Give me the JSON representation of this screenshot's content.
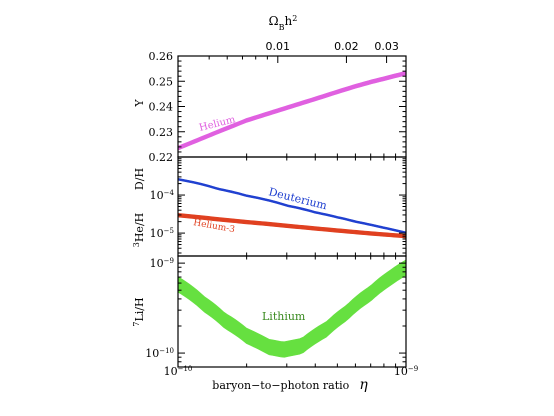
{
  "chart_data": {
    "type": "line",
    "x_axis": {
      "label": "baryon−to−photon ratio",
      "symbol": "η",
      "scale": "log",
      "range": [
        1e-10,
        1e-09
      ],
      "tick_labels": [
        {
          "value": 1e-10,
          "base": "10",
          "exp": "−10"
        },
        {
          "value": 1e-09,
          "base": "10",
          "exp": "−9"
        }
      ]
    },
    "top_axis": {
      "label_base": "Ω",
      "label_sub": "B",
      "label_rest": "h",
      "label_sup": "2",
      "tick_labels": [
        {
          "value": 0.01,
          "text": "0.01"
        },
        {
          "value": 0.02,
          "text": "0.02"
        },
        {
          "value": 0.03,
          "text": "0.03"
        }
      ]
    },
    "panels": [
      {
        "id": "helium",
        "ylabel": "Y",
        "yscale": "linear",
        "ylim": [
          0.22,
          0.26
        ],
        "yticks": [
          {
            "value": 0.22,
            "text": "0.22"
          },
          {
            "value": 0.23,
            "text": "0.23"
          },
          {
            "value": 0.24,
            "text": "0.24"
          },
          {
            "value": 0.25,
            "text": "0.25"
          },
          {
            "value": 0.26,
            "text": "0.26"
          }
        ],
        "series": [
          {
            "name": "Helium",
            "color": "#e060e0",
            "x": [
              1e-10,
              1.5e-10,
              2e-10,
              3e-10,
              4e-10,
              5e-10,
              6e-10,
              7e-10,
              8e-10,
              9e-10,
              1e-09
            ],
            "y": [
              0.2235,
              0.23,
              0.2345,
              0.2395,
              0.243,
              0.2458,
              0.248,
              0.2497,
              0.251,
              0.2522,
              0.2532
            ],
            "width": [
              0.0008,
              0.0008,
              0.0008,
              0.0008,
              0.0008,
              0.0008,
              0.0008,
              0.0008,
              0.0008,
              0.0008,
              0.0008
            ]
          }
        ]
      },
      {
        "id": "dhe3",
        "ylabel": "D/H",
        "ylabel2_sup": "3",
        "ylabel2_rest": "He/H",
        "yscale": "log",
        "ylim": [
          2.5e-06,
          0.001
        ],
        "yticks": [
          {
            "value": 0.0001,
            "base": "10",
            "exp": "−4"
          },
          {
            "value": 1e-05,
            "base": "10",
            "exp": "−5"
          }
        ],
        "series": [
          {
            "name": "Deuterium",
            "color": "#2040d0",
            "x": [
              1e-10,
              1.5e-10,
              2e-10,
              3e-10,
              4e-10,
              5e-10,
              6e-10,
              7e-10,
              8e-10,
              9e-10,
              1e-09
            ],
            "y": [
              0.00026,
              0.000145,
              9.6e-05,
              5.3e-05,
              3.5e-05,
              2.6e-05,
              2e-05,
              1.65e-05,
              1.38e-05,
              1.18e-05,
              1.02e-05
            ],
            "width_factor": 1.06
          },
          {
            "name": "Helium-3",
            "color": "#e04020",
            "x": [
              1e-10,
              1.5e-10,
              2e-10,
              3e-10,
              4e-10,
              5e-10,
              6e-10,
              7e-10,
              8e-10,
              9e-10,
              1e-09
            ],
            "y": [
              2.95e-05,
              2.3e-05,
              1.95e-05,
              1.55e-05,
              1.32e-05,
              1.17e-05,
              1.06e-05,
              9.8e-06,
              9.2e-06,
              8.7e-06,
              8.3e-06
            ],
            "width_factor": 1.12
          }
        ]
      },
      {
        "id": "lithium",
        "ylabel_sup": "7",
        "ylabel_rest": "Li/H",
        "yscale": "log",
        "ylim": [
          7e-11,
          1.2e-09
        ],
        "yticks": [
          {
            "value": 1e-09,
            "base": "10",
            "exp": "−9"
          },
          {
            "value": 1e-10,
            "base": "10",
            "exp": "−10"
          }
        ],
        "series": [
          {
            "name": "Lithium",
            "color": "#66e040",
            "x": [
              1e-10,
              1.3e-10,
              1.6e-10,
              2e-10,
              2.5e-10,
              2.9e-10,
              3.5e-10,
              4.5e-10,
              5.5e-10,
              7e-10,
              8.5e-10,
              1e-09
            ],
            "y": [
              5.8e-10,
              3.5e-10,
              2.3e-10,
              1.55e-10,
              1.17e-10,
              1.09e-10,
              1.2e-10,
              1.85e-10,
              2.8e-10,
              4.6e-10,
              6.8e-10,
              8.9e-10
            ],
            "width_factor": 1.22
          }
        ]
      }
    ],
    "annotations": [
      {
        "text": "Helium",
        "color": "#e060e0"
      },
      {
        "text": "Deuterium",
        "color": "#2040d0"
      },
      {
        "text": "Helium-3",
        "color": "#e04020"
      },
      {
        "text": "Lithium",
        "color": "#3a8a20"
      }
    ],
    "grid": false
  }
}
